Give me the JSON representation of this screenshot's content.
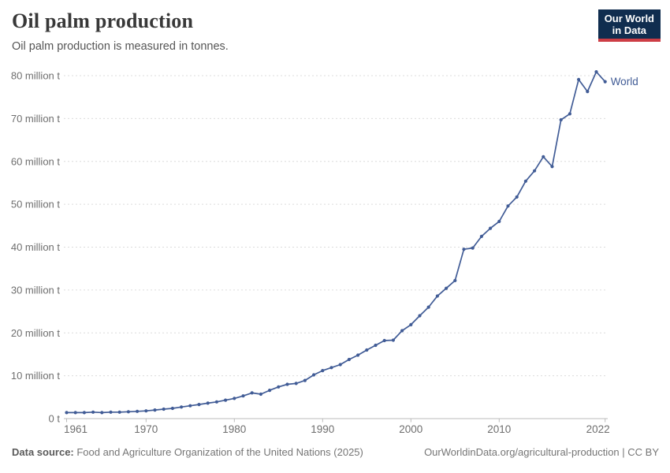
{
  "header": {
    "title": "Oil palm production",
    "subtitle": "Oil palm production is measured in tonnes."
  },
  "logo": {
    "line1": "Our World",
    "line2": "in Data"
  },
  "footer": {
    "source_label": "Data source:",
    "source_text": " Food and Agriculture Organization of the United Nations (2025)",
    "link_text": "OurWorldinData.org/agricultural-production | CC BY"
  },
  "colors": {
    "series": "#415c96",
    "grid": "#dcdcdc",
    "axis": "#bbbbbb",
    "tick_label": "#6e6e6e",
    "logo_bg": "#102d4f",
    "logo_stripe": "#cd3d45"
  },
  "chart_data": {
    "type": "line",
    "title": "Oil palm production",
    "ylabel": "",
    "xlabel": "",
    "unit": "million tonnes",
    "xlim": [
      1961,
      2022
    ],
    "ylim": [
      0,
      80
    ],
    "grid": "horizontal-dashed",
    "legend_position": "end-of-line-label",
    "x_ticks": [
      {
        "value": 1961,
        "label": "1961"
      },
      {
        "value": 1970,
        "label": "1970"
      },
      {
        "value": 1980,
        "label": "1980"
      },
      {
        "value": 1990,
        "label": "1990"
      },
      {
        "value": 2000,
        "label": "2000"
      },
      {
        "value": 2010,
        "label": "2010"
      },
      {
        "value": 2022,
        "label": "2022"
      }
    ],
    "y_ticks": [
      {
        "value": 0,
        "label": "0 t"
      },
      {
        "value": 10,
        "label": "10 million t"
      },
      {
        "value": 20,
        "label": "20 million t"
      },
      {
        "value": 30,
        "label": "30 million t"
      },
      {
        "value": 40,
        "label": "40 million t"
      },
      {
        "value": 50,
        "label": "50 million t"
      },
      {
        "value": 60,
        "label": "60 million t"
      },
      {
        "value": 70,
        "label": "70 million t"
      },
      {
        "value": 80,
        "label": "80 million t"
      }
    ],
    "series": [
      {
        "name": "World",
        "color": "#415c96",
        "years": [
          1961,
          1962,
          1963,
          1964,
          1965,
          1966,
          1967,
          1968,
          1969,
          1970,
          1971,
          1972,
          1973,
          1974,
          1975,
          1976,
          1977,
          1978,
          1979,
          1980,
          1981,
          1982,
          1983,
          1984,
          1985,
          1986,
          1987,
          1988,
          1989,
          1990,
          1991,
          1992,
          1993,
          1994,
          1995,
          1996,
          1997,
          1998,
          1999,
          2000,
          2001,
          2002,
          2003,
          2004,
          2005,
          2006,
          2007,
          2008,
          2009,
          2010,
          2011,
          2012,
          2013,
          2014,
          2015,
          2016,
          2017,
          2018,
          2019,
          2020,
          2021,
          2022
        ],
        "values": [
          1.4,
          1.4,
          1.4,
          1.5,
          1.4,
          1.5,
          1.5,
          1.6,
          1.7,
          1.8,
          2.0,
          2.2,
          2.4,
          2.7,
          3.0,
          3.3,
          3.6,
          3.9,
          4.3,
          4.7,
          5.3,
          6.0,
          5.7,
          6.6,
          7.4,
          8.0,
          8.2,
          8.9,
          10.2,
          11.2,
          11.9,
          12.6,
          13.8,
          14.8,
          16.0,
          17.1,
          18.2,
          18.3,
          20.5,
          21.9,
          24.0,
          26.0,
          28.6,
          30.4,
          32.2,
          39.5,
          39.8,
          42.5,
          44.4,
          46.0,
          49.6,
          51.7,
          55.4,
          57.8,
          61.1,
          58.8,
          69.7,
          71.1,
          79.1,
          76.3,
          80.9,
          78.6
        ]
      }
    ]
  }
}
